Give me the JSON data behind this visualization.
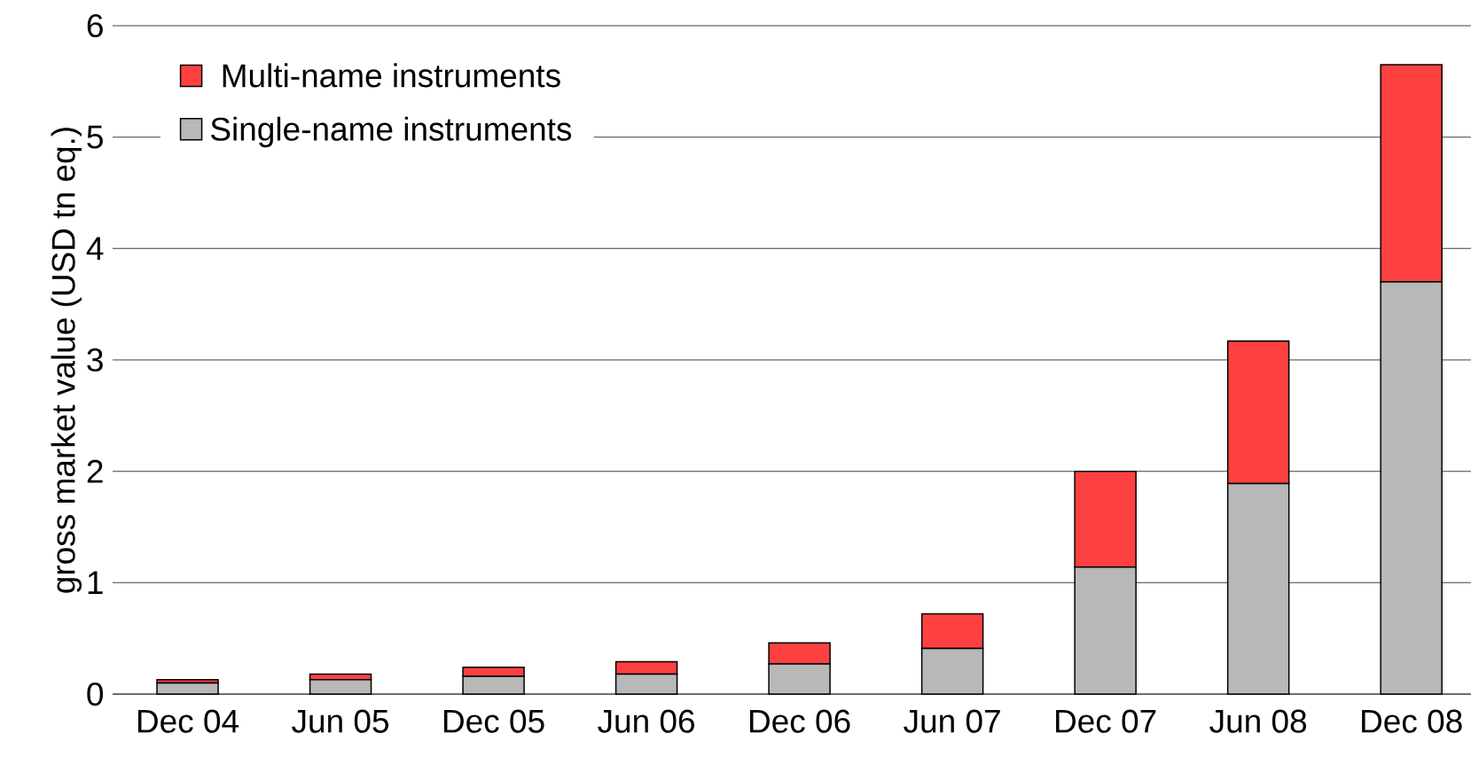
{
  "chart_data": {
    "type": "bar",
    "stacked": true,
    "ylabel": "gross market value (USD tn eq.)",
    "categories": [
      "Dec 04",
      "Jun 05",
      "Dec 05",
      "Jun 06",
      "Dec 06",
      "Jun 07",
      "Dec 07",
      "Jun 08",
      "Dec 08"
    ],
    "series": [
      {
        "name": "Single-name instruments",
        "color": "#b8b8b8",
        "values": [
          0.1,
          0.13,
          0.16,
          0.18,
          0.27,
          0.41,
          1.14,
          1.89,
          3.7
        ]
      },
      {
        "name": "Multi-name instruments",
        "color": "#ff4040",
        "values": [
          0.03,
          0.05,
          0.08,
          0.11,
          0.19,
          0.31,
          0.86,
          1.28,
          1.95
        ]
      }
    ],
    "ylim": [
      0,
      6
    ],
    "yticks": [
      0,
      1,
      2,
      3,
      4,
      5,
      6
    ],
    "grid": "y",
    "legend": "top left"
  }
}
